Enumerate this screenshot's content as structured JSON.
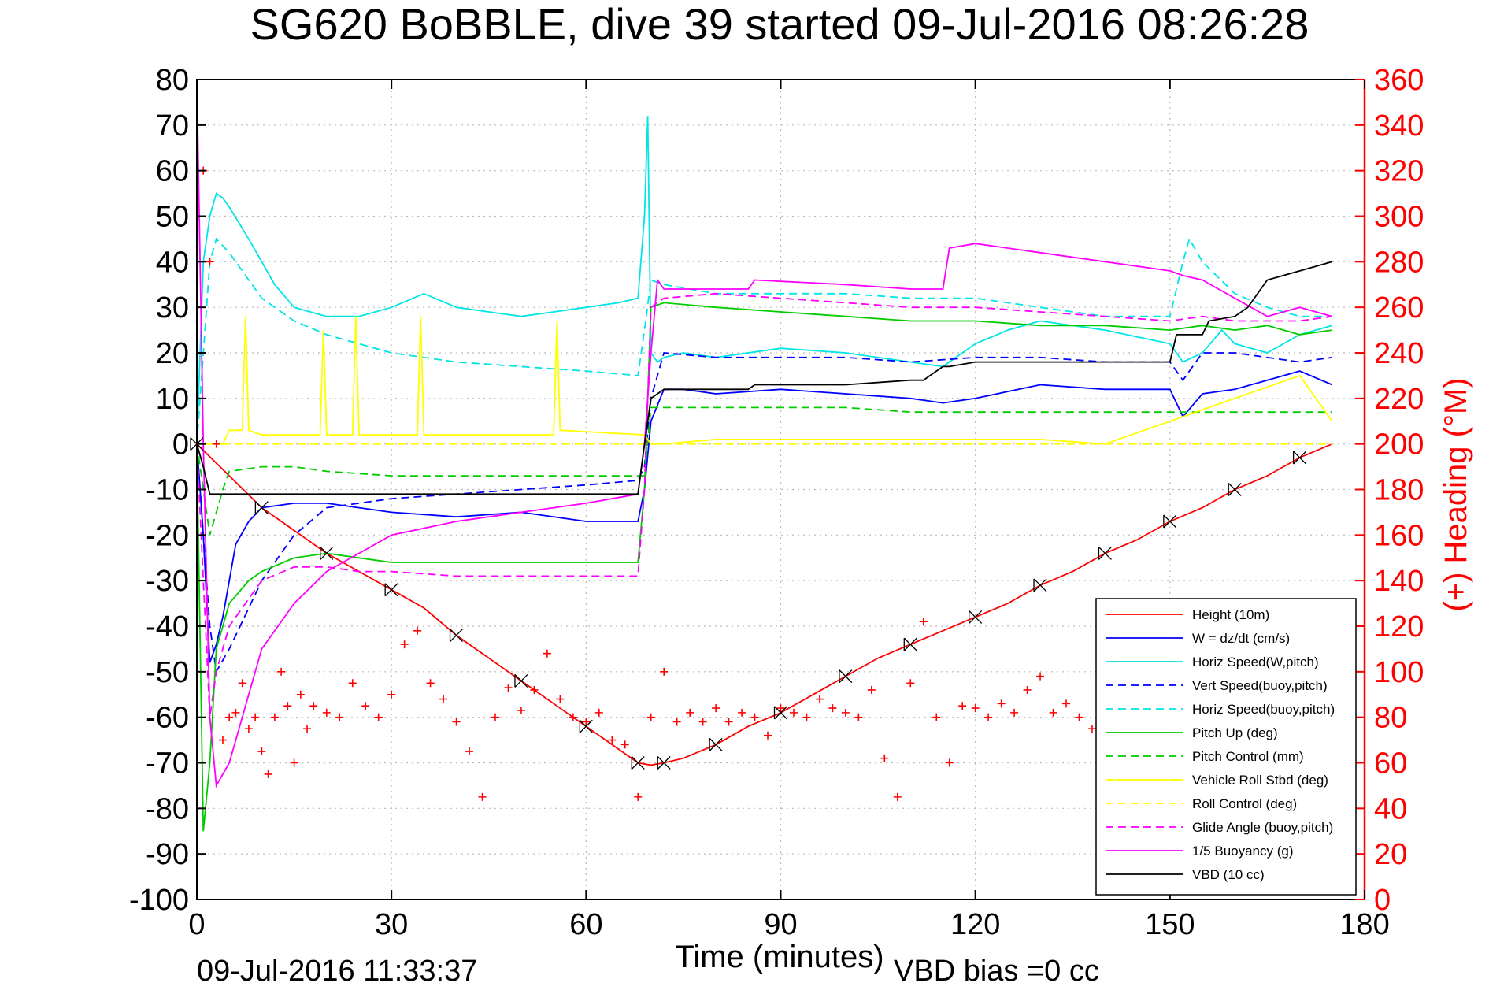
{
  "chart_data": {
    "type": "line",
    "title": "SG620 BoBBLE, dive 39 started 09-Jul-2016 08:26:28",
    "xlabel": "Time (minutes)",
    "ylabel": "",
    "y2label": "(+) Heading (°M)",
    "footer_left": "09-Jul-2016 11:33:37",
    "footer_right": "VBD bias =0 cc",
    "xlim": [
      0,
      180
    ],
    "ylim": [
      -100,
      80
    ],
    "y2lim": [
      0,
      360
    ],
    "xticks": [
      "0",
      "30",
      "60",
      "90",
      "120",
      "150",
      "180"
    ],
    "yticks": [
      "80",
      "70",
      "60",
      "50",
      "40",
      "30",
      "20",
      "10",
      "0",
      "-10",
      "-20",
      "-30",
      "-40",
      "-50",
      "-60",
      "-70",
      "-80",
      "-90",
      "-100"
    ],
    "y2ticks": [
      "360",
      "340",
      "320",
      "300",
      "280",
      "260",
      "240",
      "220",
      "200",
      "180",
      "160",
      "140",
      "120",
      "100",
      "80",
      "60",
      "40",
      "20",
      "0"
    ],
    "grid": true,
    "legend_position": "bottom-right",
    "colors": {
      "axis": "#000000",
      "heading": "#ff0000",
      "grid": "#bbbbbb"
    },
    "series": [
      {
        "name": "Height (10m)",
        "color": "#ff0000",
        "style": "solid",
        "axis": "left",
        "x": [
          0,
          5,
          10,
          15,
          20,
          25,
          30,
          35,
          40,
          45,
          50,
          55,
          60,
          65,
          68,
          70,
          72,
          75,
          80,
          85,
          90,
          95,
          100,
          105,
          110,
          115,
          120,
          125,
          130,
          135,
          140,
          145,
          150,
          155,
          160,
          165,
          170,
          175
        ],
        "y": [
          0,
          -7,
          -14,
          -19,
          -24,
          -28,
          -32,
          -36,
          -42,
          -47,
          -52,
          -57,
          -62,
          -67,
          -70,
          -70.5,
          -70,
          -69,
          -66,
          -62,
          -59,
          -55,
          -51,
          -47,
          -44,
          -41,
          -38,
          -35,
          -31,
          -28,
          -24,
          -21,
          -17,
          -14,
          -10,
          -7,
          -3,
          0
        ]
      },
      {
        "name": "W = dz/dt (cm/s)",
        "color": "#0000ff",
        "style": "solid",
        "axis": "left",
        "x": [
          0,
          1,
          2,
          3,
          4,
          6,
          8,
          10,
          15,
          20,
          25,
          30,
          40,
          50,
          60,
          68,
          69,
          70,
          72,
          75,
          80,
          90,
          100,
          110,
          115,
          120,
          130,
          140,
          150,
          152,
          155,
          160,
          165,
          170,
          175
        ],
        "y": [
          0,
          -20,
          -48,
          -44,
          -38,
          -22,
          -17,
          -14,
          -13,
          -13,
          -14,
          -15,
          -16,
          -15,
          -17,
          -17,
          -10,
          5,
          12,
          12,
          11,
          12,
          11,
          10,
          9,
          10,
          13,
          12,
          12,
          6,
          11,
          12,
          14,
          16,
          13
        ]
      },
      {
        "name": "Horiz Speed(W,pitch)",
        "color": "#00e5e5",
        "style": "solid",
        "axis": "left",
        "x": [
          0,
          1,
          2,
          3,
          4,
          5,
          8,
          10,
          12,
          15,
          20,
          25,
          30,
          35,
          40,
          45,
          50,
          55,
          60,
          65,
          68,
          69,
          69.5,
          70,
          71,
          72,
          75,
          80,
          90,
          100,
          110,
          115,
          120,
          125,
          130,
          140,
          150,
          152,
          155,
          158,
          160,
          165,
          170,
          175
        ],
        "y": [
          0,
          40,
          50,
          55,
          54,
          52,
          45,
          40,
          35,
          30,
          28,
          28,
          30,
          33,
          30,
          29,
          28,
          29,
          30,
          31,
          32,
          50,
          72,
          20,
          18,
          19,
          20,
          19,
          21,
          20,
          18,
          17,
          22,
          25,
          27,
          25,
          22,
          18,
          20,
          25,
          22,
          20,
          24,
          26
        ]
      },
      {
        "name": "Vert Speed(buoy,pitch)",
        "color": "#0000ff",
        "style": "dashed",
        "axis": "left",
        "x": [
          0,
          2,
          3,
          5,
          10,
          15,
          20,
          30,
          40,
          50,
          60,
          68,
          69,
          70,
          72,
          80,
          90,
          100,
          110,
          120,
          130,
          140,
          150,
          152,
          155,
          160,
          170,
          175
        ],
        "y": [
          0,
          -40,
          -50,
          -45,
          -30,
          -20,
          -14,
          -12,
          -11,
          -10,
          -9,
          -8,
          -5,
          10,
          20,
          19,
          19,
          19,
          18,
          19,
          19,
          18,
          18,
          14,
          20,
          20,
          18,
          19
        ]
      },
      {
        "name": "Horiz Speed(buoy,pitch)",
        "color": "#00e5e5",
        "style": "dashed",
        "axis": "left",
        "x": [
          0,
          2,
          3,
          5,
          10,
          15,
          20,
          30,
          40,
          50,
          60,
          68,
          69,
          70,
          72,
          80,
          90,
          100,
          110,
          120,
          130,
          140,
          150,
          152,
          153,
          155,
          160,
          165,
          170,
          175
        ],
        "y": [
          0,
          40,
          45,
          42,
          32,
          27,
          24,
          20,
          18,
          17,
          16,
          15,
          25,
          36,
          35,
          33,
          33,
          33,
          32,
          32,
          30,
          28,
          28,
          40,
          45,
          40,
          33,
          30,
          28,
          28
        ]
      },
      {
        "name": "Pitch Up (deg)",
        "color": "#00cc00",
        "style": "solid",
        "axis": "left",
        "x": [
          0,
          1,
          2,
          3,
          4,
          5,
          8,
          10,
          15,
          20,
          25,
          30,
          40,
          50,
          60,
          68,
          69,
          70,
          72,
          80,
          90,
          100,
          110,
          120,
          130,
          140,
          150,
          155,
          160,
          165,
          170,
          175
        ],
        "y": [
          0,
          -85,
          -70,
          -45,
          -40,
          -35,
          -30,
          -28,
          -25,
          -24,
          -25,
          -26,
          -26,
          -26,
          -26,
          -26,
          -10,
          30,
          31,
          30,
          29,
          28,
          27,
          27,
          26,
          26,
          25,
          26,
          25,
          26,
          24,
          25
        ]
      },
      {
        "name": "Pitch Control (mm)",
        "color": "#00cc00",
        "style": "dashed",
        "axis": "left",
        "x": [
          0,
          2,
          4,
          5,
          10,
          15,
          20,
          30,
          40,
          50,
          60,
          69,
          70,
          72,
          80,
          90,
          100,
          110,
          120,
          130,
          140,
          150,
          155,
          160,
          170,
          175
        ],
        "y": [
          0,
          -20,
          -10,
          -6,
          -5,
          -5,
          -6,
          -7,
          -7,
          -7,
          -7,
          -7,
          8,
          8,
          8,
          8,
          8,
          7,
          7,
          7,
          7,
          7,
          7,
          7,
          7,
          7
        ]
      },
      {
        "name": "Vehicle Roll Stbd (deg)",
        "color": "#ffff00",
        "style": "solid",
        "axis": "left",
        "x": [
          0,
          4,
          5,
          7,
          7.5,
          8,
          10,
          19,
          19.5,
          20,
          24,
          24.5,
          25,
          34,
          34.5,
          35,
          55,
          55.5,
          56,
          69,
          70,
          72,
          80,
          100,
          110,
          120,
          130,
          140,
          150,
          160,
          170,
          175
        ],
        "y": [
          0,
          0,
          3,
          3,
          28,
          3,
          2,
          2,
          25,
          2,
          2,
          28,
          2,
          2,
          28,
          2,
          2,
          27,
          3,
          2,
          0,
          0,
          1,
          1,
          1,
          1,
          1,
          0,
          5,
          10,
          15,
          5
        ]
      },
      {
        "name": "Roll Control (deg)",
        "color": "#ffff00",
        "style": "dashed",
        "axis": "left",
        "x": [
          0,
          10,
          20,
          30,
          40,
          50,
          60,
          70,
          80,
          90,
          100,
          110,
          120,
          130,
          140,
          150,
          160,
          170,
          175
        ],
        "y": [
          0,
          0,
          0,
          0,
          0,
          0,
          0,
          0,
          0,
          0,
          0,
          0,
          0,
          0,
          0,
          0,
          0,
          0,
          0
        ]
      },
      {
        "name": "Glide Angle (buoy,pitch)",
        "color": "#ff00ff",
        "style": "dashed",
        "axis": "left",
        "x": [
          0,
          2,
          3,
          5,
          10,
          15,
          20,
          25,
          30,
          40,
          50,
          60,
          68,
          69,
          70,
          72,
          80,
          90,
          100,
          110,
          120,
          130,
          140,
          150,
          155,
          160,
          170,
          175
        ],
        "y": [
          0,
          -60,
          -50,
          -40,
          -30,
          -27,
          -27,
          -28,
          -28,
          -29,
          -29,
          -29,
          -29,
          -10,
          30,
          32,
          33,
          32,
          31,
          30,
          30,
          29,
          28,
          27,
          28,
          27,
          27,
          28
        ]
      },
      {
        "name": "1/5 Buoyancy (g)",
        "color": "#ff00ff",
        "style": "solid",
        "axis": "left",
        "x": [
          0,
          1,
          2,
          3,
          5,
          8,
          10,
          15,
          20,
          25,
          30,
          40,
          50,
          60,
          68,
          69,
          70,
          71,
          72,
          80,
          85,
          86,
          100,
          110,
          115,
          116,
          120,
          130,
          140,
          150,
          152,
          155,
          160,
          165,
          170,
          175
        ],
        "y": [
          80,
          0,
          -60,
          -75,
          -70,
          -55,
          -45,
          -35,
          -28,
          -24,
          -20,
          -17,
          -15,
          -13,
          -11,
          0,
          20,
          36,
          34,
          34,
          34,
          36,
          35,
          34,
          34,
          43,
          44,
          42,
          40,
          38,
          37,
          36,
          32,
          28,
          30,
          28
        ]
      },
      {
        "name": "VBD (10 cc)",
        "color": "#000000",
        "style": "solid",
        "axis": "left",
        "x": [
          0,
          1,
          2,
          3,
          20,
          40,
          60,
          68,
          69,
          70,
          72,
          80,
          85,
          86,
          100,
          110,
          112,
          113,
          115,
          116,
          120,
          130,
          135,
          140,
          150,
          151,
          155,
          156,
          160,
          162,
          165,
          170,
          175
        ],
        "y": [
          0,
          -5,
          -11,
          -11,
          -11,
          -11,
          -11,
          -11,
          0,
          10,
          12,
          12,
          12,
          13,
          13,
          14,
          14,
          15,
          17,
          17,
          18,
          18,
          18,
          18,
          18,
          24,
          24,
          27,
          28,
          30,
          36,
          38,
          40
        ]
      },
      {
        "name": "Heading",
        "color": "#ff0000",
        "style": "markers",
        "marker": "+",
        "axis": "right",
        "x": [
          1,
          2,
          3,
          4,
          5,
          6,
          7,
          8,
          9,
          10,
          11,
          12,
          13,
          14,
          15,
          16,
          17,
          18,
          20,
          22,
          24,
          26,
          28,
          30,
          32,
          34,
          36,
          38,
          40,
          42,
          44,
          46,
          48,
          50,
          52,
          54,
          56,
          58,
          60,
          62,
          64,
          66,
          68,
          70,
          72,
          74,
          76,
          78,
          80,
          82,
          84,
          86,
          88,
          90,
          92,
          94,
          96,
          98,
          100,
          102,
          104,
          106,
          108,
          110,
          112,
          114,
          116,
          118,
          120,
          122,
          124,
          126,
          128,
          130,
          132,
          134,
          136,
          138,
          140,
          142,
          144,
          146,
          148,
          150,
          152,
          154,
          156,
          158,
          160,
          162,
          164,
          166,
          168,
          170,
          172,
          174
        ],
        "y": [
          320,
          280,
          200,
          70,
          80,
          82,
          95,
          75,
          80,
          65,
          55,
          80,
          100,
          85,
          60,
          90,
          75,
          85,
          82,
          80,
          95,
          85,
          80,
          90,
          112,
          118,
          95,
          88,
          78,
          65,
          45,
          80,
          93,
          83,
          92,
          108,
          88,
          80,
          78,
          82,
          70,
          68,
          45,
          80,
          100,
          78,
          82,
          78,
          84,
          78,
          82,
          80,
          72,
          84,
          82,
          80,
          88,
          84,
          82,
          80,
          92,
          62,
          45,
          95,
          122,
          80,
          60,
          85,
          84,
          80,
          86,
          82,
          92,
          98,
          82,
          86,
          80,
          75,
          84,
          80,
          86,
          82,
          88,
          82,
          90,
          80,
          84,
          78,
          82,
          86,
          80,
          84,
          78,
          90,
          82,
          86
        ]
      }
    ]
  }
}
